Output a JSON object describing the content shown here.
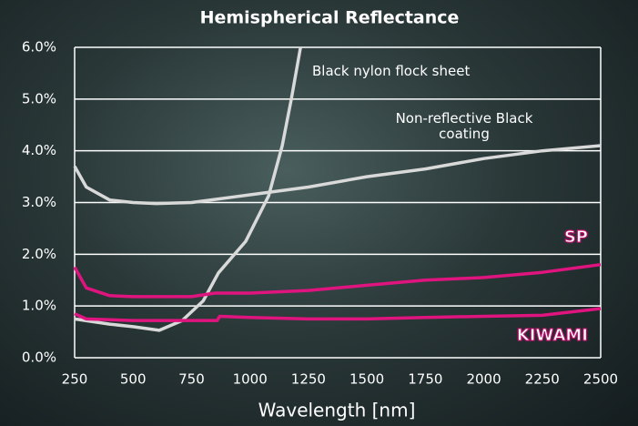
{
  "chart_data": {
    "type": "line",
    "title": "Hemispherical Reflectance",
    "x_label": "Wavelength [nm]",
    "xlim": [
      250,
      2500
    ],
    "xticks": [
      250,
      500,
      750,
      1000,
      1250,
      1500,
      1750,
      2000,
      2250,
      2500
    ],
    "ylim": [
      0,
      6
    ],
    "yticks": [
      {
        "value": 0,
        "label": "0.0%"
      },
      {
        "value": 1,
        "label": "1.0%"
      },
      {
        "value": 2,
        "label": "2.0%"
      },
      {
        "value": 3,
        "label": "3.0%"
      },
      {
        "value": 4,
        "label": "4.0%"
      },
      {
        "value": 5,
        "label": "5.0%"
      },
      {
        "value": 6,
        "label": "6.0%"
      }
    ],
    "grid": true,
    "series": [
      {
        "name": "Black nylon flock sheet",
        "color": "#d9d9d9",
        "x": [
          250,
          400,
          500,
          612,
          710,
          800,
          865,
          982,
          1080,
          1138,
          1177,
          1216
        ],
        "values": [
          0.75,
          0.65,
          0.6,
          0.53,
          0.72,
          1.1,
          1.64,
          2.25,
          3.13,
          4.1,
          5.0,
          6.0
        ]
      },
      {
        "name": "Non-reflective Black coating",
        "color": "#d9d9d9",
        "x": [
          250,
          300,
          400,
          500,
          600,
          750,
          1000,
          1250,
          1500,
          1750,
          2000,
          2250,
          2500
        ],
        "values": [
          3.7,
          3.3,
          3.05,
          3.0,
          2.98,
          3.0,
          3.15,
          3.3,
          3.5,
          3.65,
          3.85,
          4.0,
          4.1
        ]
      },
      {
        "name": "SP",
        "color": "#e0147f",
        "x": [
          250,
          300,
          400,
          500,
          750,
          850,
          1000,
          1250,
          1500,
          1750,
          2000,
          2250,
          2500
        ],
        "values": [
          1.75,
          1.35,
          1.2,
          1.18,
          1.18,
          1.25,
          1.25,
          1.3,
          1.4,
          1.5,
          1.55,
          1.65,
          1.8
        ]
      },
      {
        "name": "KIWAMI",
        "color": "#e0147f",
        "x": [
          250,
          300,
          500,
          750,
          860,
          870,
          1000,
          1250,
          1500,
          1750,
          2000,
          2250,
          2500
        ],
        "values": [
          0.85,
          0.75,
          0.72,
          0.72,
          0.72,
          0.8,
          0.78,
          0.75,
          0.75,
          0.78,
          0.8,
          0.82,
          0.95
        ]
      }
    ]
  }
}
